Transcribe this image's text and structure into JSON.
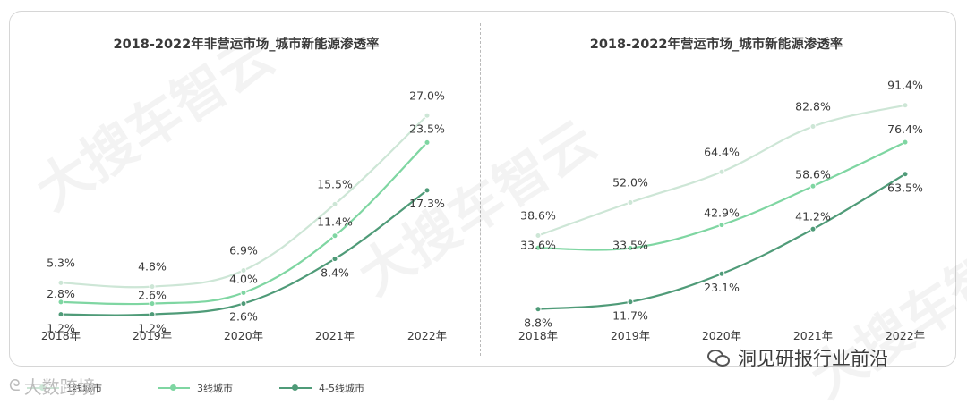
{
  "brand_left": "大数跨境",
  "brand_right": "洞见研报行业前沿",
  "watermark_text": "大搜车智云",
  "colors": {
    "tier1": "#cde6d6",
    "tier3": "#7fd6a2",
    "tier45": "#4f9b78"
  },
  "legend": [
    {
      "label": "1线城市",
      "color": "#cde6d6"
    },
    {
      "label": "3线城市",
      "color": "#7fd6a2"
    },
    {
      "label": "4-5线城市",
      "color": "#4f9b78"
    }
  ],
  "chart_data": [
    {
      "type": "line",
      "title": "2018-2022年非营运市场_城市新能源渗透率",
      "categories": [
        "2018年",
        "2019年",
        "2020年",
        "2021年",
        "2022年"
      ],
      "ylim": [
        0,
        30
      ],
      "unit": "%",
      "grid": false,
      "series": [
        {
          "name": "1线城市",
          "values": [
            5.3,
            4.8,
            6.9,
            15.5,
            27.0
          ],
          "labels": [
            "5.3%",
            "4.8%",
            "6.9%",
            "15.5%",
            "27.0%"
          ]
        },
        {
          "name": "3线城市",
          "values": [
            2.8,
            2.6,
            4.0,
            11.4,
            23.5
          ],
          "labels": [
            "2.8%",
            "2.6%",
            "4.0%",
            "11.4%",
            "23.5%"
          ]
        },
        {
          "name": "4-5线城市",
          "values": [
            1.2,
            1.2,
            2.6,
            8.4,
            17.3
          ],
          "labels": [
            "1.2%",
            "1.2%",
            "2.6%",
            "8.4%",
            "17.3%"
          ]
        }
      ]
    },
    {
      "type": "line",
      "title": "2018-2022年营运市场_城市新能源渗透率",
      "categories": [
        "2018年",
        "2019年",
        "2020年",
        "2021年",
        "2022年"
      ],
      "ylim": [
        0,
        100
      ],
      "unit": "%",
      "grid": false,
      "series": [
        {
          "name": "1线城市",
          "values": [
            38.6,
            52.0,
            64.4,
            82.8,
            91.4
          ],
          "labels": [
            "38.6%",
            "52.0%",
            "64.4%",
            "82.8%",
            "91.4%"
          ]
        },
        {
          "name": "3线城市",
          "values": [
            33.6,
            33.5,
            42.9,
            58.6,
            76.4
          ],
          "labels": [
            "33.6%",
            "33.5%",
            "42.9%",
            "58.6%",
            "76.4%"
          ]
        },
        {
          "name": "4-5线城市",
          "values": [
            8.8,
            11.7,
            23.1,
            41.2,
            63.5
          ],
          "labels": [
            "8.8%",
            "11.7%",
            "23.1%",
            "41.2%",
            "63.5%"
          ]
        }
      ]
    }
  ]
}
